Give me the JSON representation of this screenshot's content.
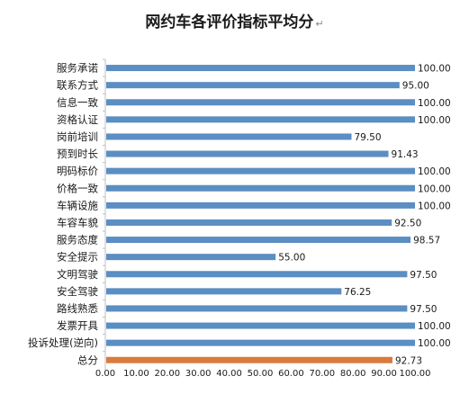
{
  "chart_data": {
    "type": "bar",
    "orientation": "horizontal",
    "title": "网约车各评价指标平均分",
    "title_suffix_mark": "↵",
    "categories": [
      "服务承诺",
      "联系方式",
      "信息一致",
      "资格认证",
      "岗前培训",
      "预到时长",
      "明码标价",
      "价格一致",
      "车辆设施",
      "车容车貌",
      "服务态度",
      "安全提示",
      "文明驾驶",
      "安全驾驶",
      "路线熟悉",
      "发票开具",
      "投诉处理(逆向)",
      "总分"
    ],
    "values": [
      100.0,
      95.0,
      100.0,
      100.0,
      79.5,
      91.43,
      100.0,
      100.0,
      100.0,
      92.5,
      98.57,
      55.0,
      97.5,
      76.25,
      97.5,
      100.0,
      100.0,
      92.73
    ],
    "value_labels": [
      "100.00",
      "95.00",
      "100.00",
      "100.00",
      "79.50",
      "91.43",
      "100.00",
      "100.00",
      "100.00",
      "92.50",
      "98.57",
      "55.00",
      "97.50",
      "76.25",
      "97.50",
      "100.00",
      "100.00",
      "92.73"
    ],
    "x_ticks": [
      "0.00",
      "10.00",
      "20.00",
      "30.00",
      "40.00",
      "50.00",
      "60.00",
      "70.00",
      "80.00",
      "90.00",
      "100.00"
    ],
    "xlim": [
      0,
      100
    ],
    "xlabel": "",
    "ylabel": "",
    "grid": false,
    "colors": {
      "bar": "#5b8ec2",
      "highlight": "#d97b3e",
      "axis": "#bfbfbf",
      "text": "#1a1a1a"
    },
    "highlight_category": "总分"
  }
}
